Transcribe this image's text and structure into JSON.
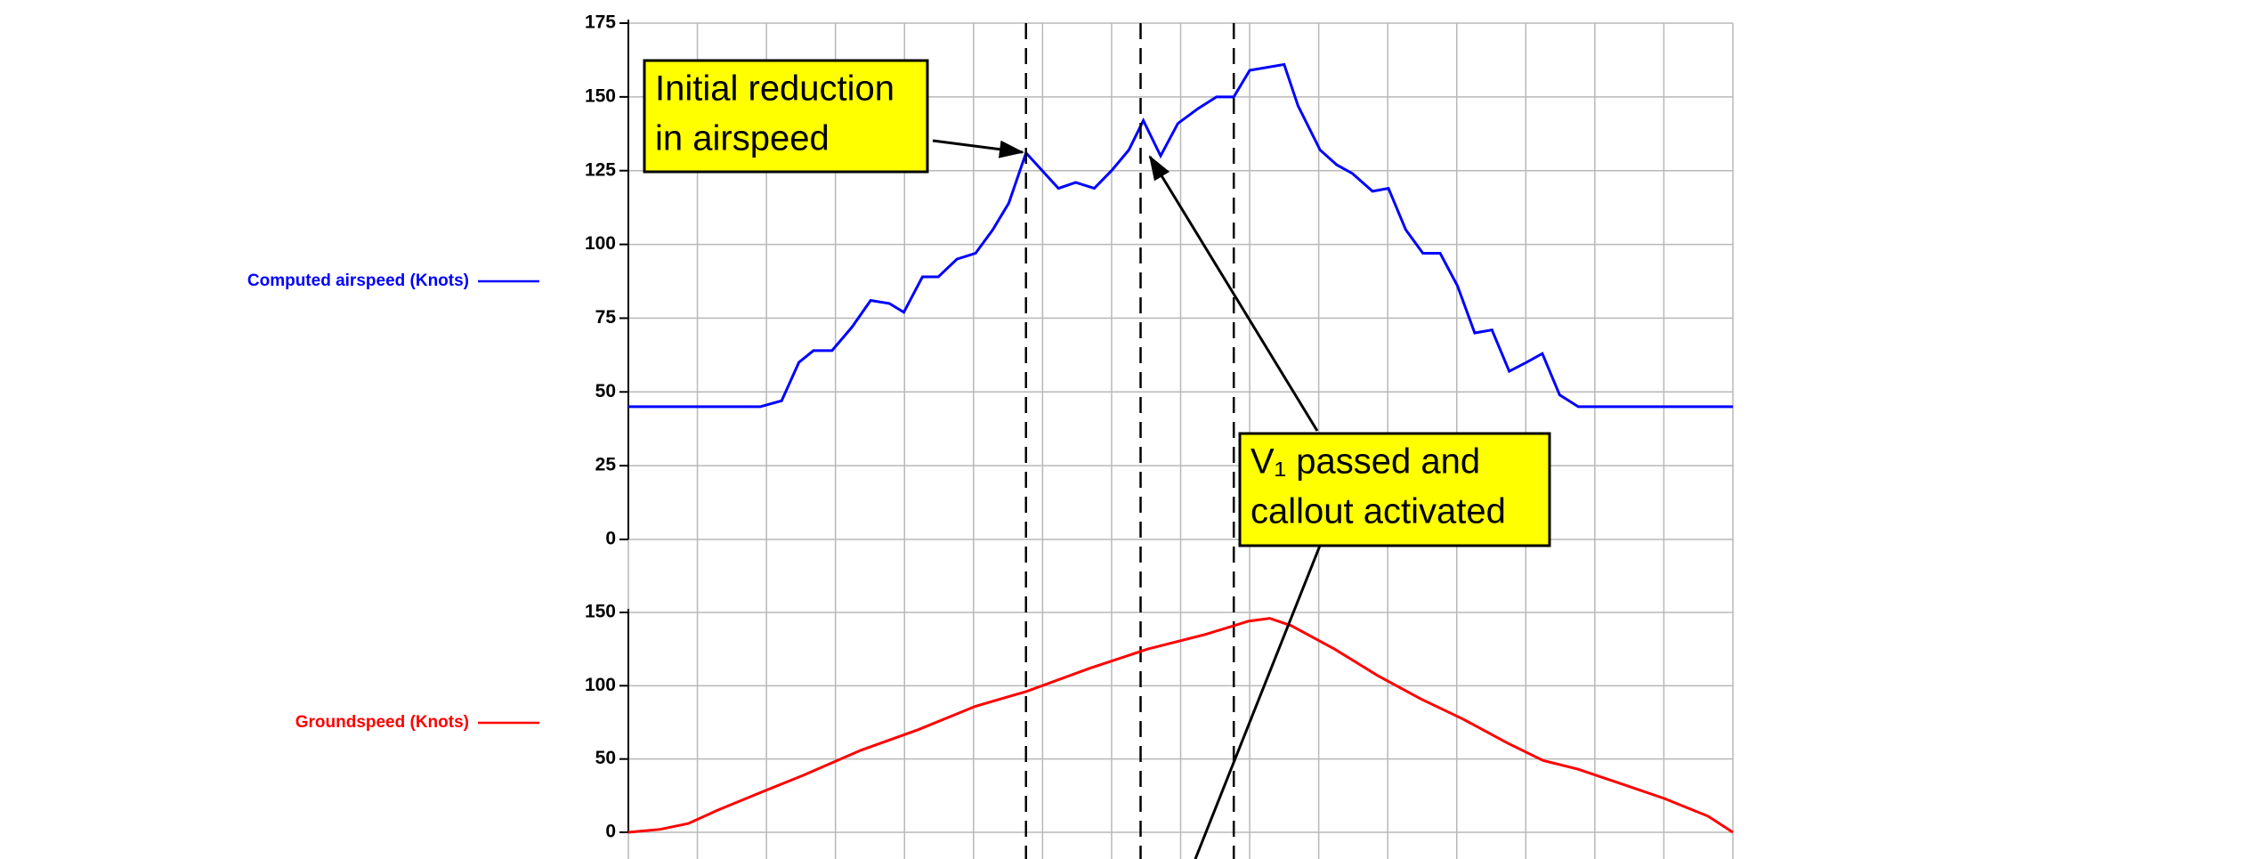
{
  "chart_data": [
    {
      "type": "line",
      "xlim": [
        0,
        16
      ],
      "xticks": [
        0,
        1,
        2,
        3,
        4,
        5,
        6,
        7,
        8,
        9,
        10,
        11,
        12,
        13,
        14,
        15,
        16
      ],
      "ylim": [
        0,
        175
      ],
      "yticks": [
        0,
        25,
        50,
        75,
        100,
        125,
        150,
        175
      ],
      "grid": true,
      "vlines": [
        5.76,
        7.42,
        8.77
      ],
      "series": [
        {
          "name": "Computed airspeed (Knots)",
          "color": "#0000ff",
          "x": [
            0,
            1.91,
            2.22,
            2.47,
            2.68,
            2.95,
            3.24,
            3.51,
            3.78,
            3.99,
            4.26,
            4.49,
            4.76,
            5.03,
            5.28,
            5.51,
            5.76,
            6.23,
            6.48,
            6.75,
            7.0,
            7.25,
            7.46,
            7.71,
            7.96,
            8.25,
            8.52,
            8.77,
            9.0,
            9.5,
            9.7,
            10.02,
            10.26,
            10.49,
            10.78,
            11.01,
            11.26,
            11.51,
            11.76,
            12.01,
            12.26,
            12.51,
            12.76,
            13.01,
            13.24,
            13.49,
            13.76,
            13.96,
            14.28,
            16
          ],
          "values": [
            45,
            45,
            47,
            60,
            64,
            64,
            72,
            81,
            80,
            77,
            89,
            89,
            95,
            97,
            105,
            114,
            131,
            119,
            121,
            119,
            125,
            132,
            142,
            130,
            141,
            146,
            150,
            150,
            159,
            161,
            147,
            132,
            127,
            124,
            118,
            119,
            105,
            97,
            97,
            86,
            70,
            71,
            57,
            60,
            63,
            49,
            45,
            45,
            45,
            45
          ]
        }
      ],
      "annotations": [
        {
          "text": [
            "Initial reduction",
            "in airspeed"
          ]
        },
        {
          "text": [
            "V₁ passed and",
            "callout activated"
          ]
        }
      ]
    },
    {
      "type": "line",
      "xlim": [
        0,
        16
      ],
      "xticks": [
        0,
        1,
        2,
        3,
        4,
        5,
        6,
        7,
        8,
        9,
        10,
        11,
        12,
        13,
        14,
        15,
        16
      ],
      "ylim": [
        0,
        150
      ],
      "yticks": [
        0,
        50,
        100,
        150
      ],
      "grid": true,
      "series": [
        {
          "name": "Groundspeed (Knots)",
          "color": "#ff0000",
          "x": [
            0,
            0.46,
            0.87,
            1.29,
            1.91,
            2.54,
            3.37,
            4.2,
            5.03,
            5.76,
            6.69,
            7.52,
            8.36,
            8.98,
            9.29,
            9.6,
            10.23,
            10.85,
            11.48,
            12.1,
            12.73,
            13.25,
            13.76,
            14.39,
            15.01,
            15.64,
            16
          ],
          "values": [
            0,
            2,
            6,
            15,
            27,
            39,
            56,
            70,
            86,
            96,
            112,
            125,
            135,
            144,
            146,
            141,
            125,
            107,
            91,
            77,
            61,
            49,
            43,
            33,
            23,
            11,
            0
          ]
        }
      ]
    }
  ]
}
